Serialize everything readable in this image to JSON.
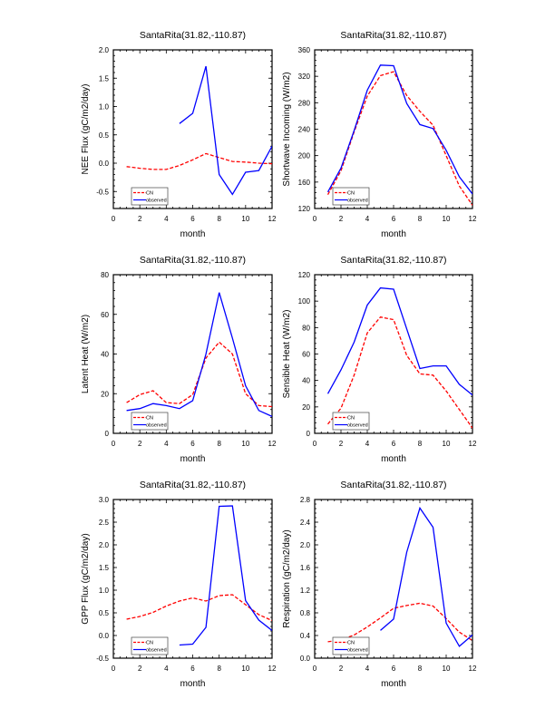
{
  "colors": {
    "model": "#ff0000",
    "observed": "#0000ff",
    "frame": "#000000"
  },
  "chart_data": [
    {
      "type": "line",
      "title": "SantaRita(31.82,-110.87)",
      "xlabel": "month",
      "ylabel": "NEE Flux (gC/m2/day)",
      "xlim": [
        0,
        12
      ],
      "ylim": [
        -0.8,
        2.0
      ],
      "xticks": [
        "0",
        "2",
        "4",
        "6",
        "8",
        "10",
        "12"
      ],
      "yticks": [
        {
          "v": -0.5,
          "label": "-0.5"
        },
        {
          "v": 0.0,
          "label": "0.0"
        },
        {
          "v": 0.5,
          "label": "0.5"
        },
        {
          "v": 1.0,
          "label": "1.0"
        },
        {
          "v": 1.5,
          "label": "1.5"
        },
        {
          "v": 2.0,
          "label": "2.0"
        }
      ],
      "legend": {
        "position": "bottom-left",
        "entries": [
          "CN",
          "observed"
        ]
      },
      "series": [
        {
          "name": "CN",
          "x": [
            1,
            2,
            3,
            4,
            5,
            6,
            7,
            8,
            9,
            10,
            11,
            12
          ],
          "values": [
            -0.06,
            -0.09,
            -0.11,
            -0.11,
            -0.04,
            0.06,
            0.17,
            0.1,
            0.03,
            0.02,
            0.0,
            -0.01
          ]
        },
        {
          "name": "observed",
          "x": [
            5,
            6,
            7,
            8,
            9,
            10,
            11,
            12
          ],
          "values": [
            0.7,
            0.88,
            1.71,
            -0.2,
            -0.55,
            -0.16,
            -0.13,
            0.3
          ]
        }
      ]
    },
    {
      "type": "line",
      "title": "SantaRita(31.82,-110.87)",
      "xlabel": "month",
      "ylabel": "Shortwave Incoming (W/m2)",
      "xlim": [
        0,
        12
      ],
      "ylim": [
        120,
        360
      ],
      "xticks": [
        "0",
        "2",
        "4",
        "6",
        "8",
        "10",
        "12"
      ],
      "yticks": [
        {
          "v": 120,
          "label": "120"
        },
        {
          "v": 160,
          "label": "160"
        },
        {
          "v": 200,
          "label": "200"
        },
        {
          "v": 240,
          "label": "240"
        },
        {
          "v": 280,
          "label": "280"
        },
        {
          "v": 320,
          "label": "320"
        },
        {
          "v": 360,
          "label": "360"
        }
      ],
      "legend": {
        "position": "bottom-left",
        "entries": [
          "CN",
          "observed"
        ]
      },
      "series": [
        {
          "name": "CN",
          "x": [
            1,
            2,
            3,
            4,
            5,
            6,
            7,
            8,
            9,
            10,
            11,
            12
          ],
          "values": [
            141,
            177,
            236,
            290,
            321,
            327,
            291,
            267,
            246,
            200,
            154,
            125
          ]
        },
        {
          "name": "observed",
          "x": [
            1,
            2,
            3,
            4,
            5,
            6,
            7,
            8,
            9,
            10,
            11,
            12
          ],
          "values": [
            145,
            181,
            238,
            299,
            337,
            336,
            279,
            247,
            241,
            208,
            168,
            142
          ]
        }
      ]
    },
    {
      "type": "line",
      "title": "SantaRita(31.82,-110.87)",
      "xlabel": "month",
      "ylabel": "Latent Heat (W/m2)",
      "xlim": [
        0,
        12
      ],
      "ylim": [
        0,
        80
      ],
      "xticks": [
        "0",
        "2",
        "4",
        "6",
        "8",
        "10",
        "12"
      ],
      "yticks": [
        {
          "v": 0,
          "label": "0"
        },
        {
          "v": 20,
          "label": "20"
        },
        {
          "v": 40,
          "label": "40"
        },
        {
          "v": 60,
          "label": "60"
        },
        {
          "v": 80,
          "label": "80"
        }
      ],
      "legend": {
        "position": "bottom-left",
        "entries": [
          "CN",
          "observed"
        ]
      },
      "series": [
        {
          "name": "CN",
          "x": [
            1,
            2,
            3,
            4,
            5,
            6,
            7,
            8,
            9,
            10,
            11,
            12
          ],
          "values": [
            15.5,
            19.5,
            21.5,
            15.5,
            15,
            19.5,
            38,
            46,
            40,
            20,
            14,
            13.5
          ]
        },
        {
          "name": "observed",
          "x": [
            1,
            2,
            3,
            4,
            5,
            6,
            7,
            8,
            9,
            10,
            11,
            12
          ],
          "values": [
            11.5,
            12.5,
            15,
            14,
            12.5,
            16.5,
            40,
            71,
            48,
            24,
            11.5,
            8.5
          ]
        }
      ]
    },
    {
      "type": "line",
      "title": "SantaRita(31.82,-110.87)",
      "xlabel": "month",
      "ylabel": "Sensible Heat (W/m2)",
      "xlim": [
        0,
        12
      ],
      "ylim": [
        0,
        120
      ],
      "xticks": [
        "0",
        "2",
        "4",
        "6",
        "8",
        "10",
        "12"
      ],
      "yticks": [
        {
          "v": 0,
          "label": "0"
        },
        {
          "v": 20,
          "label": "20"
        },
        {
          "v": 40,
          "label": "40"
        },
        {
          "v": 60,
          "label": "60"
        },
        {
          "v": 80,
          "label": "80"
        },
        {
          "v": 100,
          "label": "100"
        },
        {
          "v": 120,
          "label": "120"
        }
      ],
      "legend": {
        "position": "bottom-left",
        "entries": [
          "CN",
          "observed"
        ]
      },
      "series": [
        {
          "name": "CN",
          "x": [
            1,
            2,
            3,
            4,
            5,
            6,
            7,
            8,
            9,
            10,
            11,
            12
          ],
          "values": [
            7,
            19,
            44,
            76,
            88,
            86,
            59,
            45,
            44,
            32,
            18,
            4
          ]
        },
        {
          "name": "observed",
          "x": [
            1,
            2,
            3,
            4,
            5,
            6,
            7,
            8,
            9,
            10,
            11,
            12
          ],
          "values": [
            30,
            48,
            69,
            97,
            110,
            109,
            79,
            49,
            51,
            51,
            37,
            29
          ]
        }
      ]
    },
    {
      "type": "line",
      "title": "SantaRita(31.82,-110.87)",
      "xlabel": "month",
      "ylabel": "GPP Flux (gC/m2/day)",
      "xlim": [
        0,
        12
      ],
      "ylim": [
        -0.5,
        3.0
      ],
      "xticks": [
        "0",
        "2",
        "4",
        "6",
        "8",
        "10",
        "12"
      ],
      "yticks": [
        {
          "v": -0.5,
          "label": "-0.5"
        },
        {
          "v": 0.0,
          "label": "0.0"
        },
        {
          "v": 0.5,
          "label": "0.5"
        },
        {
          "v": 1.0,
          "label": "1.0"
        },
        {
          "v": 1.5,
          "label": "1.5"
        },
        {
          "v": 2.0,
          "label": "2.0"
        },
        {
          "v": 2.5,
          "label": "2.5"
        },
        {
          "v": 3.0,
          "label": "3.0"
        }
      ],
      "legend": {
        "position": "bottom-left",
        "entries": [
          "CN",
          "observed"
        ]
      },
      "series": [
        {
          "name": "CN",
          "x": [
            1,
            2,
            3,
            4,
            5,
            6,
            7,
            8,
            9,
            10,
            11,
            12
          ],
          "values": [
            0.36,
            0.42,
            0.51,
            0.65,
            0.76,
            0.83,
            0.76,
            0.88,
            0.9,
            0.68,
            0.46,
            0.33
          ]
        },
        {
          "name": "observed",
          "x": [
            5,
            6,
            7,
            8,
            9,
            10,
            11,
            12
          ],
          "values": [
            -0.21,
            -0.19,
            0.18,
            2.85,
            2.86,
            0.77,
            0.34,
            0.11
          ]
        }
      ]
    },
    {
      "type": "line",
      "title": "SantaRita(31.82,-110.87)",
      "xlabel": "month",
      "ylabel": "Respiration (gC/m2/day)",
      "xlim": [
        0,
        12
      ],
      "ylim": [
        0.0,
        2.8
      ],
      "xticks": [
        "0",
        "2",
        "4",
        "6",
        "8",
        "10",
        "12"
      ],
      "yticks": [
        {
          "v": 0.0,
          "label": "0.0"
        },
        {
          "v": 0.4,
          "label": "0.4"
        },
        {
          "v": 0.8,
          "label": "0.8"
        },
        {
          "v": 1.2,
          "label": "1.2"
        },
        {
          "v": 1.6,
          "label": "1.6"
        },
        {
          "v": 2.0,
          "label": "2.0"
        },
        {
          "v": 2.4,
          "label": "2.4"
        },
        {
          "v": 2.8,
          "label": "2.8"
        }
      ],
      "legend": {
        "position": "bottom-left",
        "entries": [
          "CN",
          "observed"
        ]
      },
      "series": [
        {
          "name": "CN",
          "x": [
            1,
            2,
            3,
            4,
            5,
            6,
            7,
            8,
            9,
            10,
            11,
            12
          ],
          "values": [
            0.29,
            0.32,
            0.41,
            0.55,
            0.71,
            0.88,
            0.93,
            0.97,
            0.92,
            0.7,
            0.46,
            0.31
          ]
        },
        {
          "name": "observed",
          "x": [
            5,
            6,
            7,
            8,
            9,
            10,
            11,
            12
          ],
          "values": [
            0.49,
            0.69,
            1.87,
            2.65,
            2.31,
            0.62,
            0.21,
            0.41
          ]
        }
      ]
    }
  ]
}
